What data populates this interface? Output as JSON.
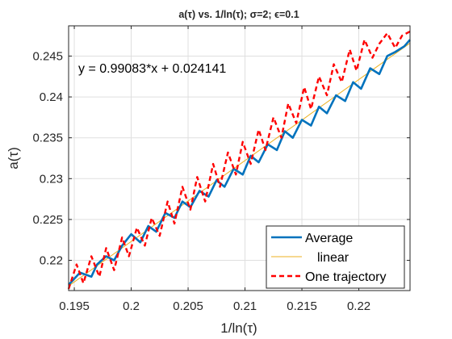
{
  "chart_data": {
    "type": "line",
    "title": "a(τ) vs. 1/ln(τ); σ=2; ϵ=0.1",
    "xlabel": "1/ln(τ)",
    "ylabel": "a(τ)",
    "xlim": [
      0.1945,
      0.2245
    ],
    "ylim": [
      0.2163,
      0.2487
    ],
    "xticks": [
      0.195,
      0.2,
      0.205,
      0.21,
      0.215,
      0.22
    ],
    "xtick_labels": [
      "0.195",
      "0.2",
      "0.205",
      "0.21",
      "0.215",
      "0.22"
    ],
    "yticks": [
      0.22,
      0.225,
      0.23,
      0.235,
      0.24,
      0.245
    ],
    "ytick_labels": [
      "0.22",
      "0.225",
      "0.23",
      "0.235",
      "0.24",
      "0.245"
    ],
    "grid": true,
    "annotation": "y = 0.99083*x + 0.024141",
    "legend_position": "bottom-right",
    "fit": {
      "slope": 0.99083,
      "intercept": 0.024141
    },
    "series": [
      {
        "name": "Average",
        "style": "solid-thick",
        "color": "#0072BD",
        "x": [
          0.1945,
          0.1955,
          0.1965,
          0.197,
          0.1978,
          0.1985,
          0.1992,
          0.2,
          0.2008,
          0.2015,
          0.2022,
          0.203,
          0.2038,
          0.2045,
          0.2052,
          0.206,
          0.2068,
          0.2075,
          0.2082,
          0.209,
          0.2098,
          0.2105,
          0.2112,
          0.212,
          0.2128,
          0.2135,
          0.2142,
          0.215,
          0.2158,
          0.2165,
          0.2172,
          0.218,
          0.2188,
          0.2195,
          0.2202,
          0.221,
          0.2218,
          0.2225,
          0.2232,
          0.224,
          0.2245
        ],
        "y": [
          0.217,
          0.2185,
          0.218,
          0.2195,
          0.2205,
          0.22,
          0.2218,
          0.2232,
          0.2222,
          0.2242,
          0.2235,
          0.2258,
          0.2252,
          0.2272,
          0.2265,
          0.2285,
          0.2278,
          0.2298,
          0.229,
          0.2312,
          0.2305,
          0.2328,
          0.232,
          0.2342,
          0.2335,
          0.2358,
          0.235,
          0.2372,
          0.2365,
          0.2388,
          0.238,
          0.2402,
          0.2395,
          0.2418,
          0.241,
          0.2435,
          0.2428,
          0.245,
          0.2455,
          0.2462,
          0.247
        ]
      },
      {
        "name": "linear",
        "style": "solid-thin",
        "color": "#EDB120",
        "x": [
          0.1945,
          0.2245
        ],
        "y": [
          0.21686,
          0.24658
        ]
      },
      {
        "name": "One trajectory",
        "style": "dashed",
        "color": "#FF0000",
        "x": [
          0.1945,
          0.1952,
          0.1958,
          0.1965,
          0.1972,
          0.1978,
          0.1985,
          0.1992,
          0.1998,
          0.2005,
          0.2012,
          0.2018,
          0.2025,
          0.2032,
          0.2038,
          0.2045,
          0.2052,
          0.2058,
          0.2065,
          0.2072,
          0.2078,
          0.2085,
          0.2092,
          0.2098,
          0.2105,
          0.2112,
          0.2118,
          0.2125,
          0.2132,
          0.2138,
          0.2145,
          0.2152,
          0.2158,
          0.2165,
          0.2172,
          0.2178,
          0.2185,
          0.2192,
          0.2198,
          0.2205,
          0.2212,
          0.2218,
          0.2225,
          0.2232,
          0.2238,
          0.2245
        ],
        "y": [
          0.2165,
          0.2195,
          0.2172,
          0.2205,
          0.218,
          0.2215,
          0.2188,
          0.2228,
          0.2205,
          0.224,
          0.2218,
          0.2252,
          0.223,
          0.2272,
          0.2245,
          0.229,
          0.2262,
          0.2302,
          0.2272,
          0.2318,
          0.229,
          0.2332,
          0.2305,
          0.2345,
          0.2318,
          0.236,
          0.2335,
          0.2375,
          0.235,
          0.2392,
          0.2368,
          0.2412,
          0.2385,
          0.2425,
          0.2402,
          0.244,
          0.2418,
          0.2458,
          0.2432,
          0.247,
          0.2448,
          0.2465,
          0.2478,
          0.246,
          0.2475,
          0.248
        ]
      }
    ]
  }
}
